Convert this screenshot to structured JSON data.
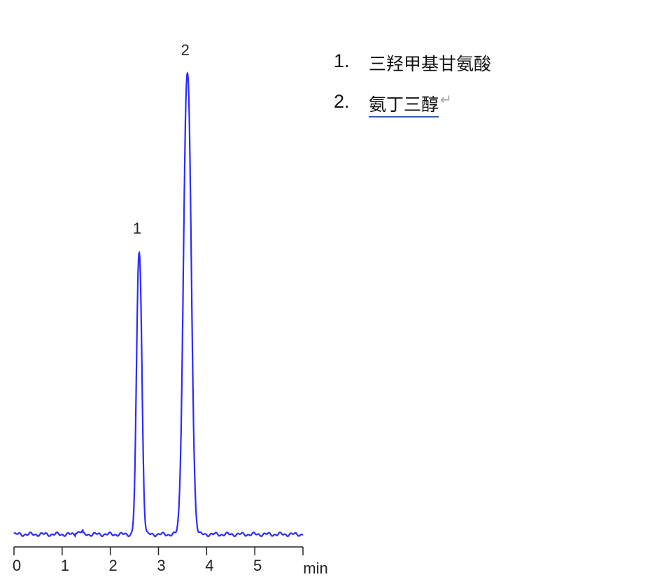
{
  "chart_data": {
    "type": "line",
    "title": "",
    "xlabel": "min",
    "ylabel": "",
    "xlim": [
      0,
      6
    ],
    "xticks": [
      "0",
      "1",
      "2",
      "3",
      "4",
      "5"
    ],
    "grid": false,
    "line_color": "#2b2bff",
    "peaks": [
      {
        "label": "1",
        "retention_time": 2.6,
        "relative_height": 61.3
      },
      {
        "label": "2",
        "retention_time": 3.6,
        "relative_height": 100
      }
    ]
  },
  "legend": {
    "items": [
      {
        "number": "1.",
        "name": "三羟甲基甘氨酸",
        "mark": "↵"
      },
      {
        "number": "2.",
        "name": "氨丁三醇",
        "mark": "↵"
      }
    ]
  }
}
